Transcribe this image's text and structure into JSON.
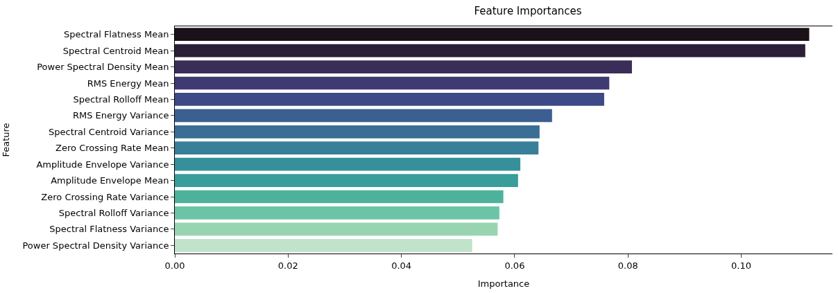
{
  "chart_data": {
    "type": "bar",
    "orientation": "horizontal",
    "title": "Feature Importances",
    "xlabel": "Importance",
    "ylabel": "Feature",
    "categories": [
      "Spectral Flatness Mean",
      "Spectral Centroid Mean",
      "Power Spectral Density Mean",
      "RMS Energy Mean",
      "Spectral Rolloff Mean",
      "RMS Energy Variance",
      "Spectral Centroid Variance",
      "Zero Crossing Rate Mean",
      "Amplitude Envelope Variance",
      "Amplitude Envelope Mean",
      "Zero Crossing Rate Variance",
      "Spectral Rolloff Variance",
      "Spectral Flatness Variance",
      "Power Spectral Density Variance"
    ],
    "values": [
      0.112,
      0.1113,
      0.0807,
      0.0767,
      0.0758,
      0.0666,
      0.0644,
      0.0642,
      0.061,
      0.0606,
      0.058,
      0.0573,
      0.057,
      0.0525
    ],
    "colors": [
      "#1a1119",
      "#2b1e37",
      "#3a2d58",
      "#403a73",
      "#3e4a87",
      "#3b5f91",
      "#3a6e95",
      "#387f99",
      "#36909c",
      "#389d9b",
      "#4db29c",
      "#6cc4a6",
      "#99d4b1",
      "#c0e3c9"
    ],
    "xlim": [
      0,
      0.1161
    ],
    "xticks": [
      {
        "value": 0,
        "label": "0.00"
      },
      {
        "value": 0.02,
        "label": "0.02"
      },
      {
        "value": 0.04,
        "label": "0.04"
      },
      {
        "value": 0.06,
        "label": "0.06"
      },
      {
        "value": 0.08,
        "label": "0.08"
      },
      {
        "value": 0.1,
        "label": "0.10"
      }
    ]
  }
}
